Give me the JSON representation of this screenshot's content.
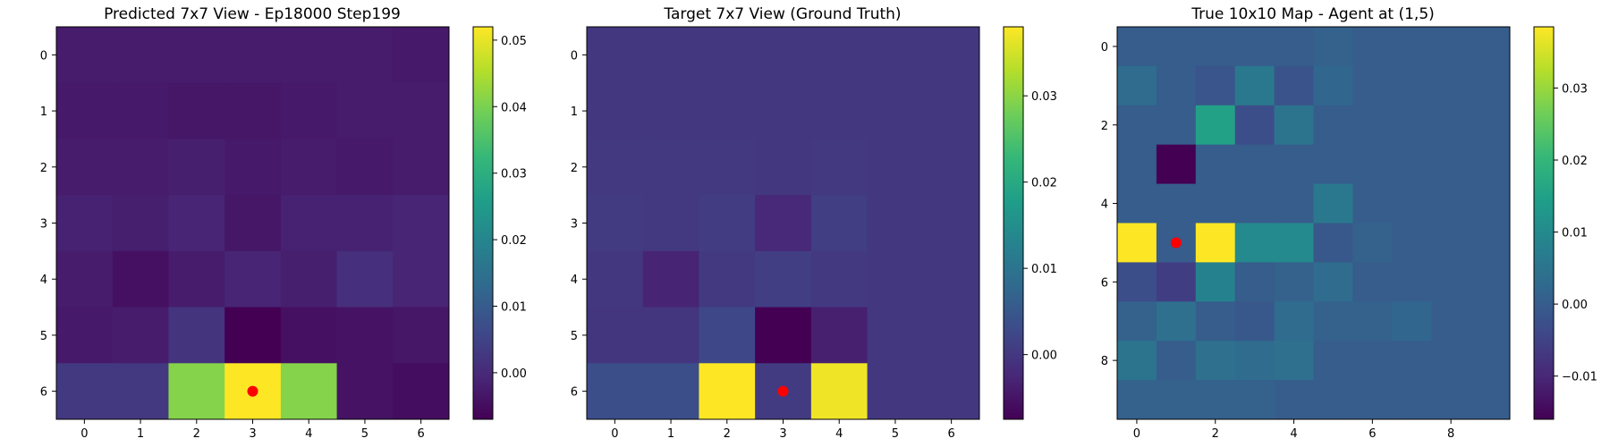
{
  "colormap": "viridis",
  "marker_color": "#ff0000",
  "chart_data": [
    {
      "type": "heatmap",
      "title": "Predicted 7x7 View - Ep18000 Step199",
      "rows": 7,
      "cols": 7,
      "xticks": [
        0,
        1,
        2,
        3,
        4,
        5,
        6
      ],
      "yticks": [
        0,
        1,
        2,
        3,
        4,
        5,
        6
      ],
      "vmin": -0.007,
      "vmax": 0.052,
      "colorbar_ticks": [
        0.0,
        0.01,
        0.02,
        0.03,
        0.04,
        0.05
      ],
      "colorbar_labels": [
        "0.00",
        "0.01",
        "0.02",
        "0.03",
        "0.04",
        "0.05"
      ],
      "values": [
        [
          -0.0025,
          -0.0025,
          -0.0025,
          -0.0025,
          -0.0025,
          -0.0025,
          -0.003
        ],
        [
          -0.003,
          -0.003,
          -0.0035,
          -0.0035,
          -0.003,
          -0.0025,
          -0.0025
        ],
        [
          -0.0025,
          -0.0025,
          -0.002,
          -0.003,
          -0.0025,
          -0.003,
          -0.0025
        ],
        [
          -0.0015,
          -0.002,
          -0.001,
          -0.0035,
          -0.0015,
          -0.0015,
          -0.001
        ],
        [
          -0.0025,
          -0.0045,
          -0.0025,
          -0.001,
          -0.002,
          0.001,
          -0.001
        ],
        [
          -0.003,
          -0.0025,
          0.002,
          -0.007,
          -0.0045,
          -0.004,
          -0.0035
        ],
        [
          0.003,
          0.003,
          0.041,
          0.052,
          0.041,
          -0.004,
          -0.005
        ]
      ],
      "marker": {
        "row": 6,
        "col": 3
      }
    },
    {
      "type": "heatmap",
      "title": "Target 7x7 View (Ground Truth)",
      "rows": 7,
      "cols": 7,
      "xticks": [
        0,
        1,
        2,
        3,
        4,
        5,
        6
      ],
      "yticks": [
        0,
        1,
        2,
        3,
        4,
        5,
        6
      ],
      "vmin": -0.0075,
      "vmax": 0.038,
      "colorbar_ticks": [
        0.0,
        0.01,
        0.02,
        0.03
      ],
      "colorbar_labels": [
        "0.00",
        "0.01",
        "0.02",
        "0.03"
      ],
      "values": [
        [
          0.0,
          0.0,
          0.0,
          0.0,
          0.0,
          0.0,
          0.0
        ],
        [
          0.0,
          0.0,
          0.0,
          0.0,
          0.0,
          0.0,
          0.0
        ],
        [
          0.0002,
          0.0002,
          0.0002,
          0.0,
          0.0002,
          0.0,
          0.0
        ],
        [
          0.0005,
          0.0002,
          0.0008,
          -0.0025,
          0.001,
          0.0,
          0.0
        ],
        [
          0.0,
          -0.003,
          0.0002,
          0.001,
          0.0002,
          0.0,
          0.0
        ],
        [
          -0.0005,
          -0.0005,
          0.0025,
          -0.0075,
          -0.0035,
          0.0,
          0.0
        ],
        [
          0.0035,
          0.0035,
          0.038,
          0.0005,
          0.037,
          0.0,
          0.0
        ]
      ],
      "marker": {
        "row": 6,
        "col": 3
      }
    },
    {
      "type": "heatmap",
      "title": "True 10x10 Map - Agent at (1,5)",
      "rows": 10,
      "cols": 10,
      "xticks": [
        0,
        2,
        4,
        6,
        8
      ],
      "yticks": [
        0,
        2,
        4,
        6,
        8
      ],
      "vmin": -0.016,
      "vmax": 0.0385,
      "colorbar_ticks": [
        -0.01,
        0.0,
        0.01,
        0.02,
        0.03
      ],
      "colorbar_labels": [
        "−0.01",
        "0.00",
        "0.01",
        "0.02",
        "0.03"
      ],
      "values": [
        [
          0.0,
          0.0,
          0.0,
          0.0,
          0.0,
          0.001,
          0.0,
          0.0,
          0.0,
          0.0
        ],
        [
          0.003,
          0.0,
          -0.0015,
          0.006,
          -0.002,
          0.002,
          0.0,
          0.0,
          0.0,
          0.0
        ],
        [
          0.0,
          0.0,
          0.015,
          -0.003,
          0.005,
          0.0,
          0.0,
          0.0,
          0.0,
          0.0
        ],
        [
          0.0,
          -0.016,
          0.0,
          0.0,
          0.0,
          0.0,
          0.0,
          0.0,
          0.0,
          0.0
        ],
        [
          0.0,
          0.0,
          0.0,
          0.0,
          0.0,
          0.006,
          0.0,
          0.0,
          0.0,
          0.0
        ],
        [
          0.0385,
          0.0,
          0.0385,
          0.01,
          0.01,
          -0.001,
          0.001,
          0.0,
          0.0,
          0.0
        ],
        [
          -0.003,
          -0.006,
          0.008,
          0.0,
          0.001,
          0.003,
          0.0,
          0.0,
          0.0,
          0.0
        ],
        [
          0.001,
          0.004,
          0.0,
          -0.001,
          0.003,
          0.001,
          0.001,
          0.002,
          0.0,
          0.0
        ],
        [
          0.005,
          0.0,
          0.004,
          0.003,
          0.004,
          0.0,
          0.0,
          0.0,
          0.0,
          0.0
        ],
        [
          0.001,
          0.001,
          0.001,
          0.001,
          0.0,
          0.0,
          0.0,
          0.0,
          0.0,
          0.0
        ]
      ],
      "marker": {
        "row": 5,
        "col": 1
      }
    }
  ]
}
